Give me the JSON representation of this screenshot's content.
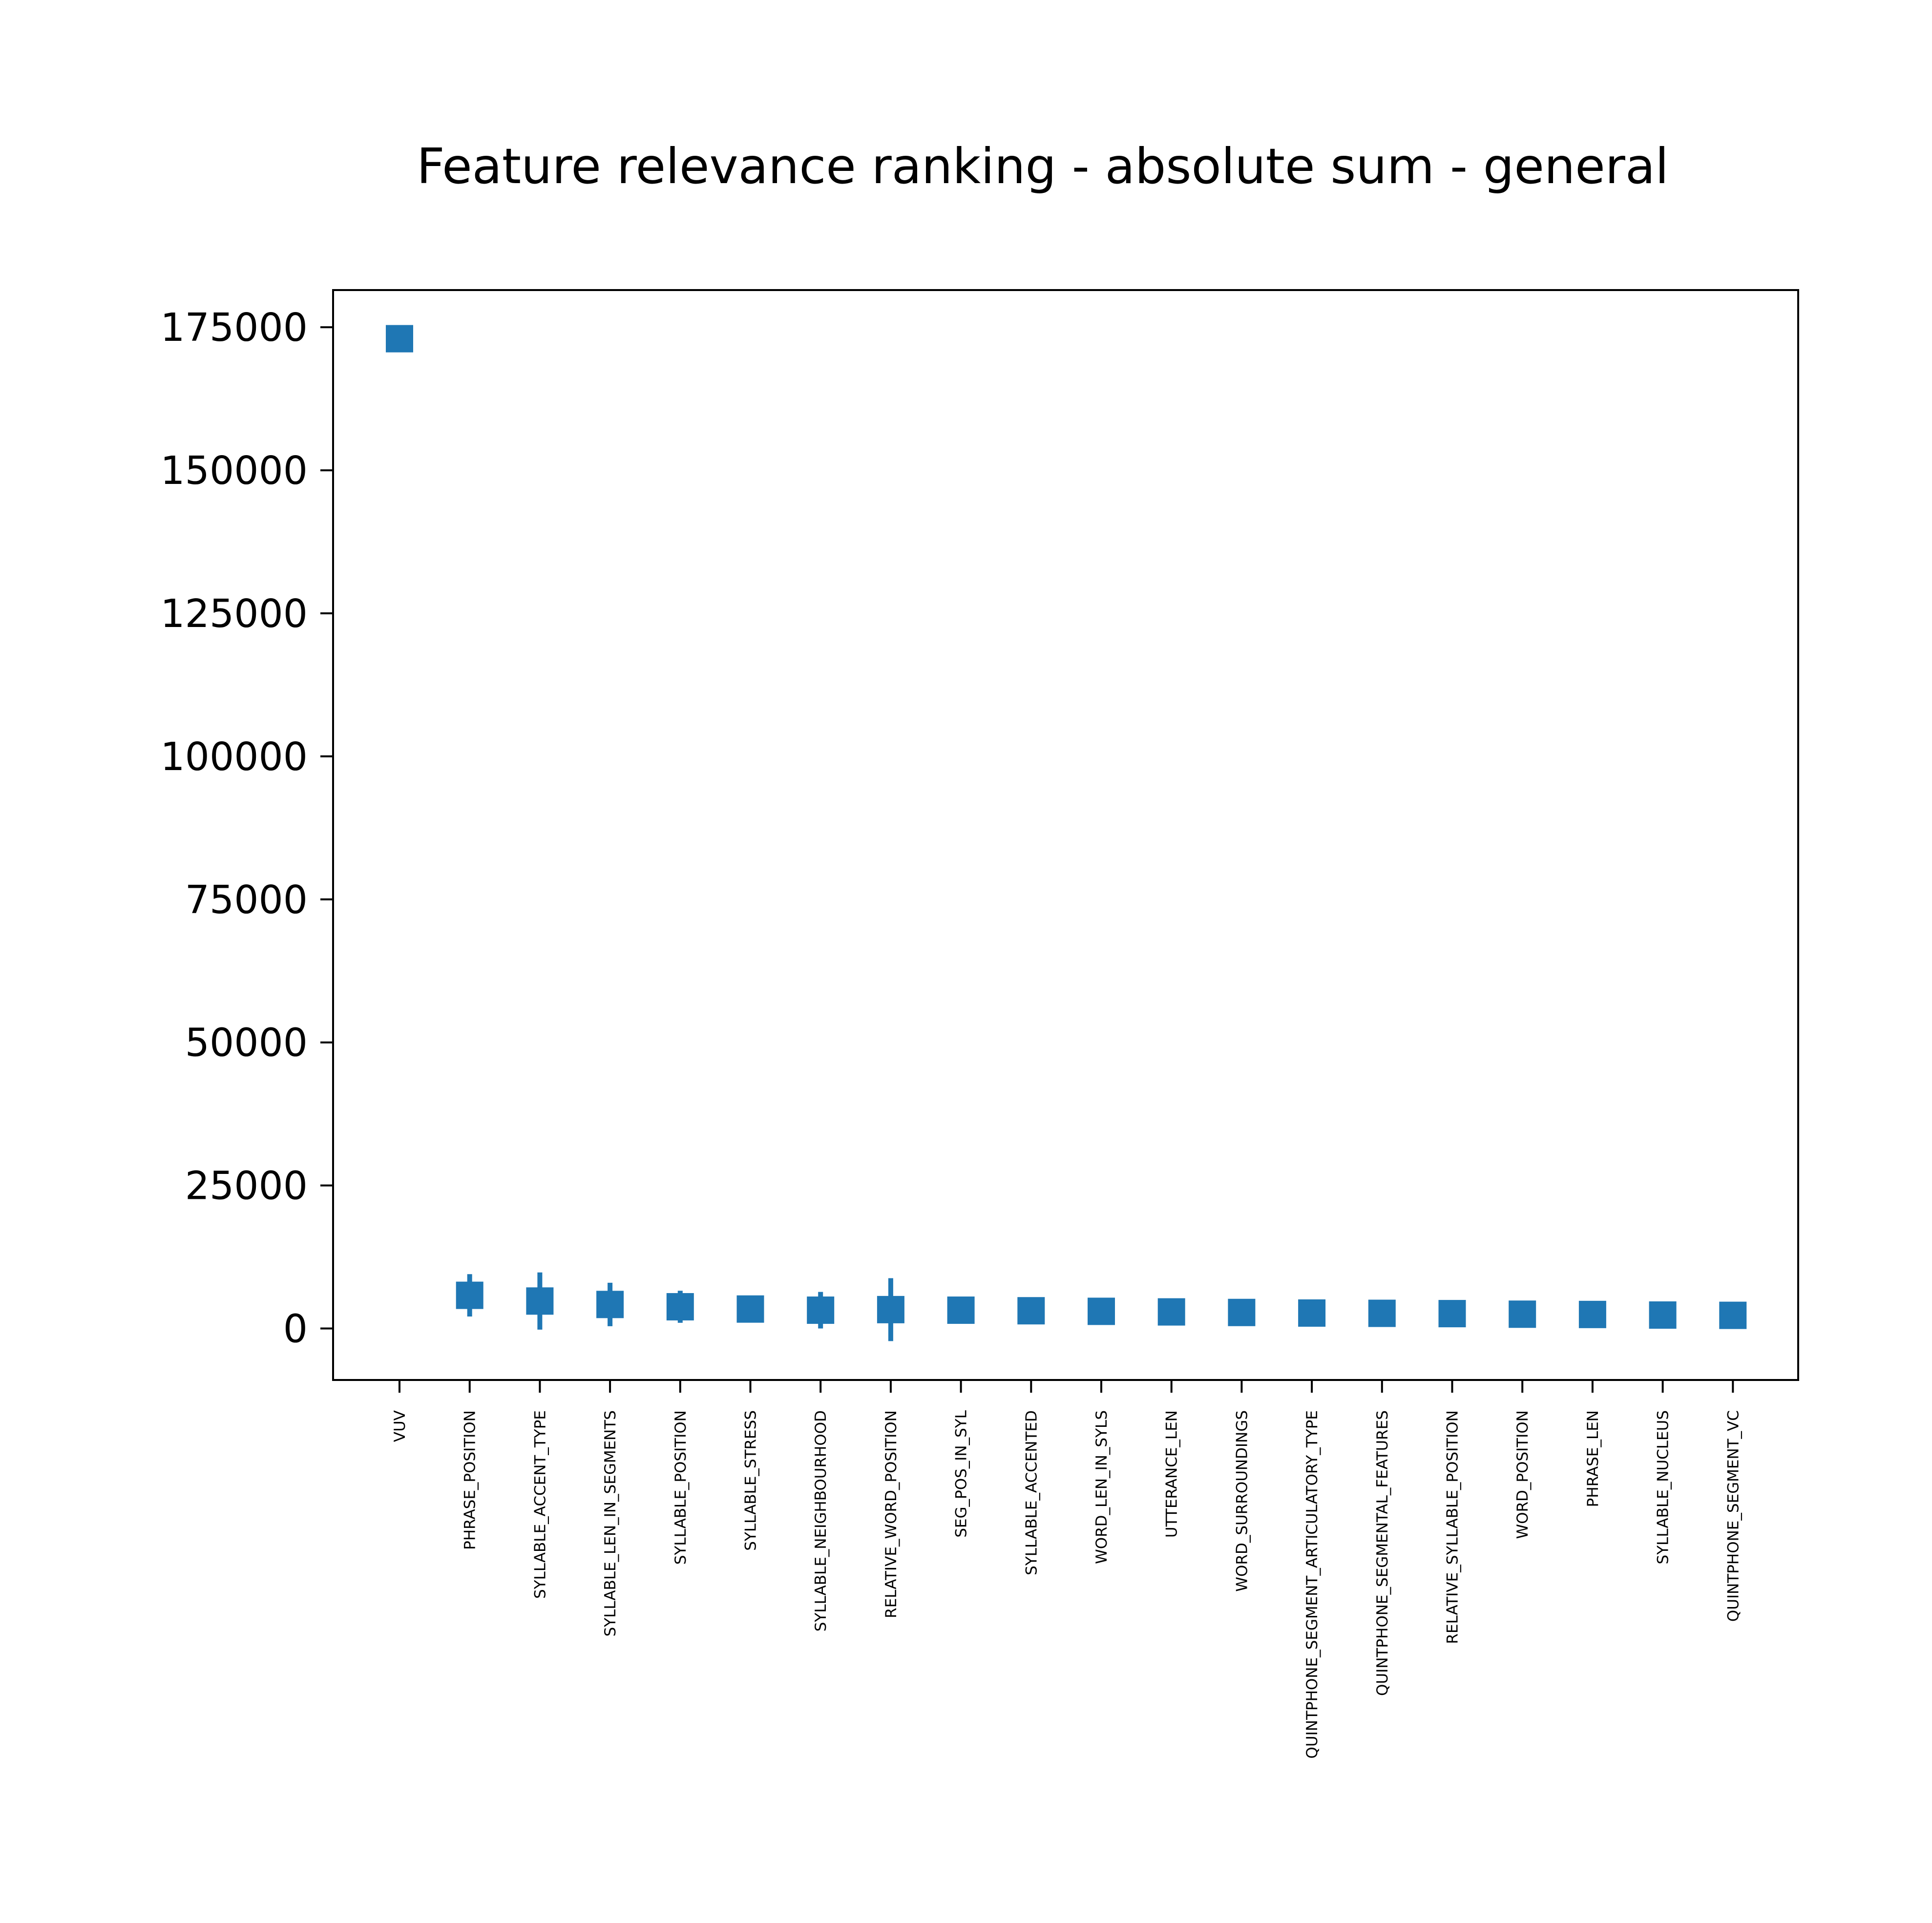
{
  "chart_data": {
    "type": "scatter",
    "title": "Feature relevance ranking - absolute sum - general",
    "xlabel": "",
    "ylabel": "",
    "ylim": [
      -9000,
      181500
    ],
    "yticks": [
      0,
      25000,
      50000,
      75000,
      100000,
      125000,
      150000,
      175000
    ],
    "ytick_labels": [
      "0",
      "25000",
      "50000",
      "75000",
      "100000",
      "125000",
      "150000",
      "175000"
    ],
    "marker": "square",
    "color": "#1f77b4",
    "grid": false,
    "legend": "none",
    "categories": [
      "VUV",
      "PHRASE_POSITION",
      "SYLLABLE_ACCENT_TYPE",
      "SYLLABLE_LEN_IN_SEGMENTS",
      "SYLLABLE_POSITION",
      "SYLLABLE_STRESS",
      "SYLLABLE_NEIGHBOURHOOD",
      "RELATIVE_WORD_POSITION",
      "SEG_POS_IN_SYL",
      "SYLLABLE_ACCENTED",
      "WORD_LEN_IN_SYLS",
      "UTTERANCE_LEN",
      "WORD_SURROUNDINGS",
      "QUINTPHONE_SEGMENT_ARTICULATORY_TYPE",
      "QUINTPHONE_SEGMENTAL_FEATURES",
      "RELATIVE_SYLLABLE_POSITION",
      "WORD_POSITION",
      "PHRASE_LEN",
      "SYLLABLE_NUCLEUS",
      "QUINTPHONE_SEGMENT_VC"
    ],
    "values": [
      173000,
      5800,
      4800,
      4200,
      3800,
      3400,
      3200,
      3300,
      3200,
      3100,
      3000,
      2900,
      2800,
      2700,
      2650,
      2600,
      2500,
      2450,
      2350,
      2300
    ],
    "errors": [
      0,
      3700,
      5000,
      3800,
      2800,
      1200,
      3200,
      5500,
      1100,
      900,
      800,
      800,
      700,
      700,
      700,
      700,
      700,
      600,
      600,
      600
    ]
  }
}
